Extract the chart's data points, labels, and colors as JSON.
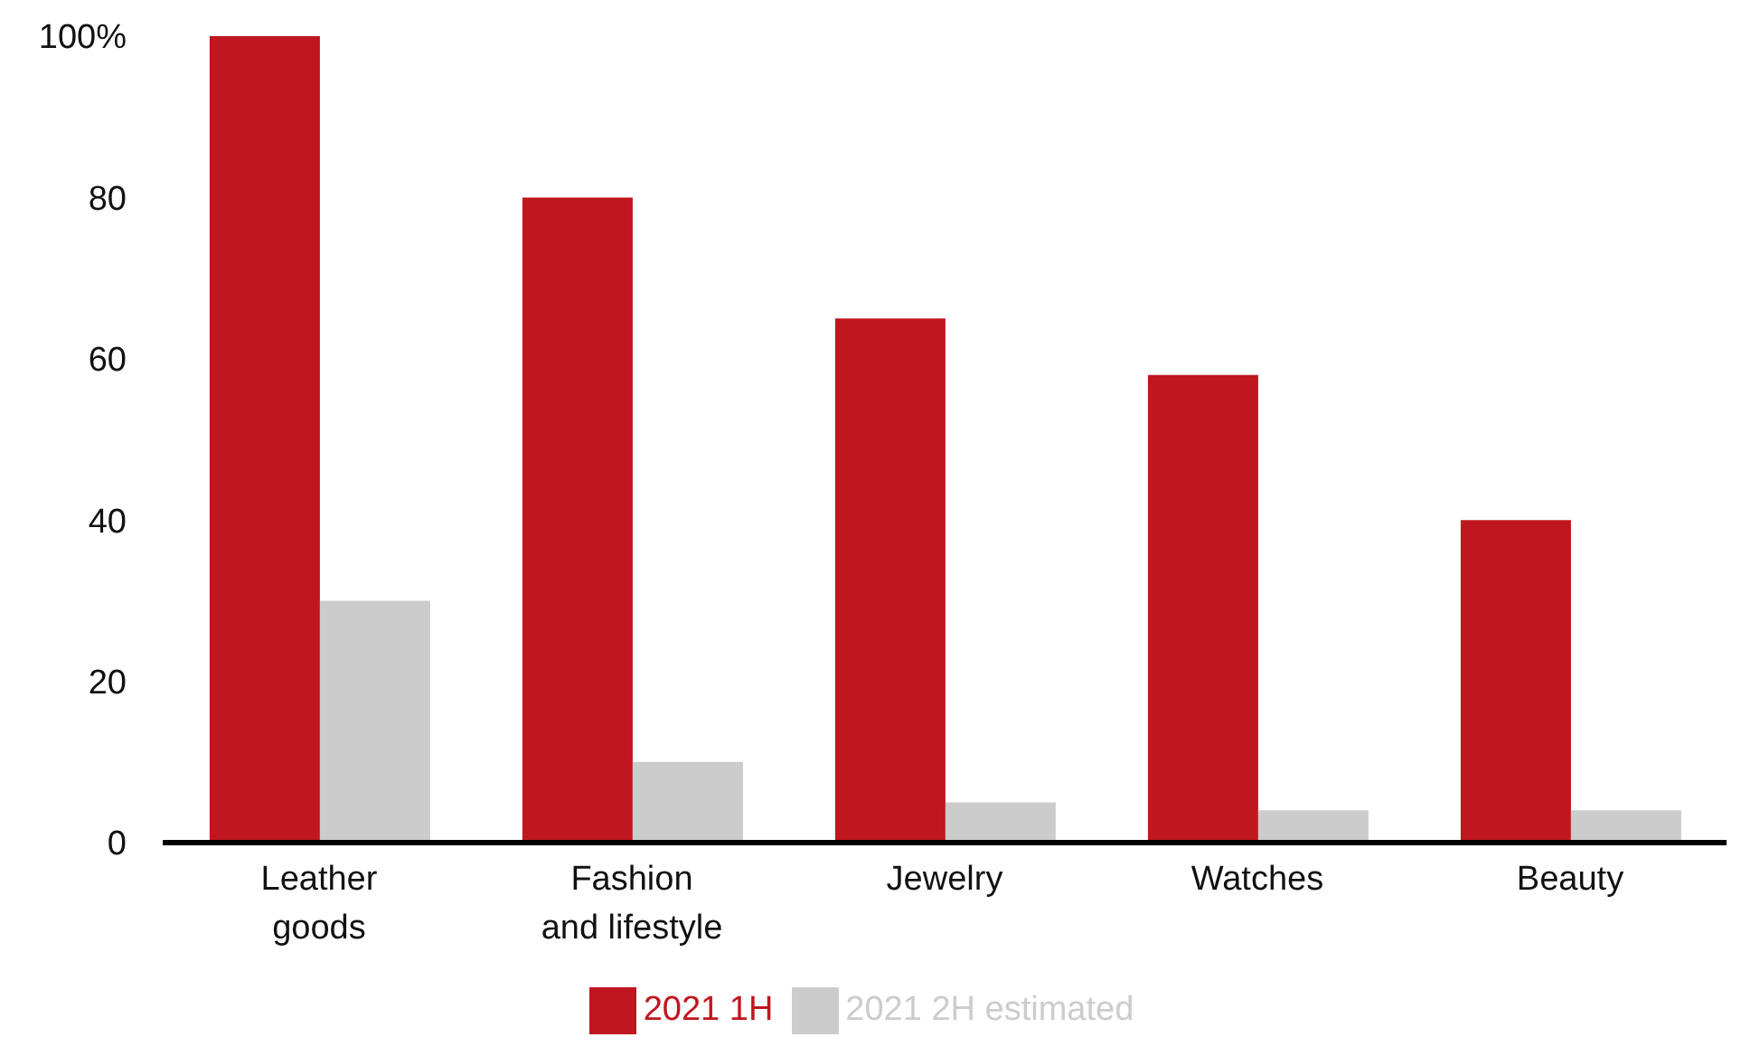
{
  "chart_data": {
    "type": "bar",
    "categories": [
      "Leather goods",
      "Fashion and lifestyle",
      "Jewelry",
      "Watches",
      "Beauty"
    ],
    "series": [
      {
        "name": "2021 1H",
        "color": "#c0161f",
        "values": [
          100,
          80,
          65,
          58,
          40
        ]
      },
      {
        "name": "2021 2H estimated",
        "color": "#cbcccb",
        "values": [
          30,
          10,
          5,
          4,
          4
        ]
      }
    ],
    "ylim": [
      0,
      100
    ],
    "yticks": [
      0,
      20,
      40,
      60,
      80,
      {
        "value": 100,
        "label": "100%"
      }
    ],
    "grid": false,
    "legend": "bottom"
  }
}
